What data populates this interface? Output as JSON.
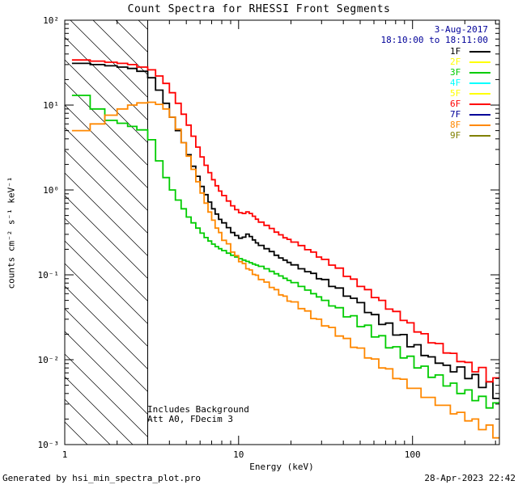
{
  "header": {
    "title": "Count Spectra for RHESSI Front Segments"
  },
  "date_label": {
    "line1": "3-Aug-2017",
    "line2": "18:10:00 to 18:11:00"
  },
  "footer": {
    "left": "Generated by hsi_min_spectra_plot.pro",
    "right": "28-Apr-2023 22:42"
  },
  "colors": {
    "date_text": "#000099",
    "axis": "#000000",
    "background": "#ffffff"
  },
  "chart_data": {
    "type": "line",
    "title": "Count Spectra for RHESSI Front Segments",
    "xlabel": "Energy (keV)",
    "ylabel": "counts cm⁻² s⁻¹ keV⁻¹",
    "xscale": "log",
    "yscale": "log",
    "xlim": [
      1,
      316
    ],
    "ylim": [
      0.001,
      100
    ],
    "grid": false,
    "legend_position": "top-right",
    "annotations": [
      "Includes Background",
      "Att A0, FDecim 3"
    ],
    "hatch_region": {
      "from": 1,
      "to": 3,
      "spacing": 28
    },
    "x_ticks": [
      {
        "value": 1,
        "label": "1"
      },
      {
        "value": 10,
        "label": "10"
      },
      {
        "value": 100,
        "label": "100"
      }
    ],
    "y_ticks": [
      {
        "value": 0.001,
        "label": "10⁻³"
      },
      {
        "value": 0.01,
        "label": "10⁻²"
      },
      {
        "value": 0.1,
        "label": "10⁻¹"
      },
      {
        "value": 1,
        "label": "10⁰"
      },
      {
        "value": 10,
        "label": "10¹"
      },
      {
        "value": 100,
        "label": "10²"
      }
    ],
    "legend": [
      {
        "label": "1F",
        "color": "#000000"
      },
      {
        "label": "2F",
        "color": "#ffff00"
      },
      {
        "label": "3F",
        "color": "#00cc00"
      },
      {
        "label": "4F",
        "color": "#00ffff"
      },
      {
        "label": "5F",
        "color": "#ffff00"
      },
      {
        "label": "6F",
        "color": "#ff0000"
      },
      {
        "label": "7F",
        "color": "#000099"
      },
      {
        "label": "8F",
        "color": "#ff8800"
      },
      {
        "label": "9F",
        "color": "#808000"
      }
    ],
    "energies": [
      1.1,
      1.4,
      1.7,
      2.0,
      2.3,
      2.6,
      3.0,
      3.33,
      3.67,
      4.0,
      4.33,
      4.67,
      5.0,
      5.33,
      5.67,
      6.0,
      6.33,
      6.67,
      7.0,
      7.33,
      7.67,
      8.0,
      8.5,
      9.0,
      9.5,
      10.0,
      10.5,
      11.0,
      11.5,
      12.0,
      12.5,
      13.0,
      14,
      15,
      16,
      17,
      18,
      19,
      20,
      22,
      24,
      26,
      28,
      30,
      33,
      36,
      40,
      44,
      48,
      53,
      58,
      64,
      70,
      77,
      85,
      93,
      102,
      112,
      123,
      135,
      150,
      165,
      180,
      200,
      220,
      240,
      265,
      290,
      320
    ],
    "series": [
      {
        "name": "1F",
        "color": "#000000",
        "values": [
          31,
          30,
          29,
          28,
          27,
          25,
          21,
          15,
          10.5,
          7.2,
          5.0,
          3.6,
          2.6,
          1.9,
          1.45,
          1.1,
          0.88,
          0.72,
          0.6,
          0.52,
          0.45,
          0.41,
          0.36,
          0.315,
          0.29,
          0.27,
          0.278,
          0.302,
          0.283,
          0.258,
          0.238,
          0.222,
          0.203,
          0.188,
          0.17,
          0.158,
          0.149,
          0.14,
          0.131,
          0.118,
          0.109,
          0.104,
          0.09,
          0.088,
          0.073,
          0.07,
          0.056,
          0.053,
          0.047,
          0.036,
          0.034,
          0.026,
          0.027,
          0.0195,
          0.0198,
          0.0142,
          0.015,
          0.0112,
          0.0108,
          0.0091,
          0.0086,
          0.0072,
          0.0082,
          0.006,
          0.0067,
          0.0047,
          0.0055,
          0.0035,
          0.0042
        ]
      },
      {
        "name": "3F",
        "color": "#00cc00",
        "values": [
          13,
          9,
          6.6,
          6.1,
          5.6,
          5.1,
          3.9,
          2.2,
          1.4,
          1.0,
          0.76,
          0.6,
          0.48,
          0.41,
          0.355,
          0.31,
          0.275,
          0.25,
          0.23,
          0.215,
          0.203,
          0.193,
          0.18,
          0.17,
          0.162,
          0.155,
          0.149,
          0.144,
          0.139,
          0.134,
          0.13,
          0.126,
          0.118,
          0.11,
          0.103,
          0.097,
          0.091,
          0.086,
          0.081,
          0.073,
          0.066,
          0.06,
          0.055,
          0.05,
          0.043,
          0.041,
          0.032,
          0.033,
          0.0245,
          0.0255,
          0.0185,
          0.0192,
          0.0138,
          0.0142,
          0.0105,
          0.011,
          0.008,
          0.0084,
          0.0062,
          0.0066,
          0.0049,
          0.0053,
          0.004,
          0.0044,
          0.0033,
          0.0037,
          0.0027,
          0.0031,
          0.0025
        ]
      },
      {
        "name": "6F",
        "color": "#ff0000",
        "values": [
          34,
          33,
          32,
          31,
          30,
          28,
          26,
          22,
          18,
          14,
          10.5,
          7.8,
          5.8,
          4.3,
          3.2,
          2.45,
          1.95,
          1.6,
          1.32,
          1.12,
          0.97,
          0.86,
          0.74,
          0.65,
          0.585,
          0.54,
          0.528,
          0.552,
          0.528,
          0.49,
          0.452,
          0.418,
          0.383,
          0.352,
          0.318,
          0.296,
          0.273,
          0.262,
          0.243,
          0.221,
          0.198,
          0.185,
          0.162,
          0.152,
          0.13,
          0.12,
          0.096,
          0.089,
          0.073,
          0.067,
          0.054,
          0.05,
          0.0395,
          0.037,
          0.029,
          0.0272,
          0.0212,
          0.0202,
          0.0158,
          0.0155,
          0.012,
          0.0119,
          0.0095,
          0.0093,
          0.0072,
          0.0081,
          0.0055,
          0.0061,
          0.0046
        ]
      },
      {
        "name": "8F",
        "color": "#ff8800",
        "values": [
          5.0,
          6.0,
          7.6,
          9.0,
          10.0,
          10.6,
          10.8,
          10.2,
          9.0,
          7.2,
          5.2,
          3.6,
          2.5,
          1.75,
          1.25,
          0.92,
          0.7,
          0.55,
          0.44,
          0.355,
          0.315,
          0.255,
          0.232,
          0.185,
          0.168,
          0.143,
          0.136,
          0.118,
          0.114,
          0.101,
          0.099,
          0.088,
          0.082,
          0.071,
          0.067,
          0.058,
          0.056,
          0.049,
          0.048,
          0.04,
          0.0375,
          0.0305,
          0.03,
          0.025,
          0.024,
          0.019,
          0.0178,
          0.014,
          0.0137,
          0.0105,
          0.0102,
          0.008,
          0.0078,
          0.006,
          0.0059,
          0.0046,
          0.0046,
          0.0036,
          0.0036,
          0.0029,
          0.0029,
          0.0023,
          0.0024,
          0.0019,
          0.002,
          0.0015,
          0.0017,
          0.0012,
          0.0014
        ]
      }
    ]
  }
}
